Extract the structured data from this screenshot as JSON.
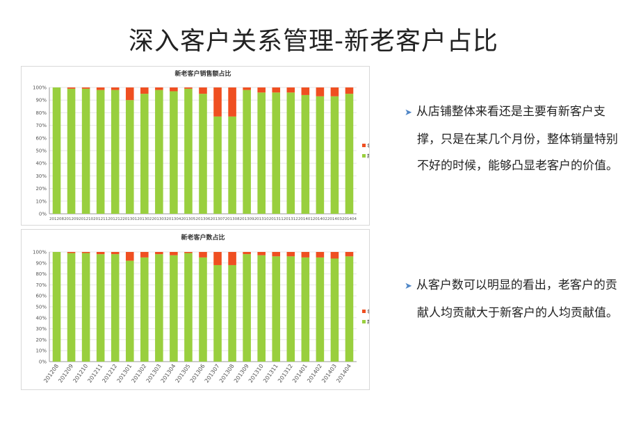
{
  "page_title": "深入客户关系管理-新老客户占比",
  "colors": {
    "old": "#ef4f21",
    "new": "#99cf3e",
    "arrow": "#4f86c6"
  },
  "bullets": [
    "从店铺整体来看还是主要有新客户支撑，只是在某几个月份，整体销量特别不好的时候，能够凸显老客户的价值。",
    "从客户数可以明显的看出，老客户的贡献人均贡献大于新客户的人均贡献值。"
  ],
  "chart_data": [
    {
      "type": "bar",
      "stacked": true,
      "title": "新老客户销售额占比",
      "categories": [
        "201208",
        "201209",
        "201210",
        "201211",
        "201212",
        "201301",
        "201302",
        "201303",
        "201304",
        "201305",
        "201306",
        "201307",
        "201308",
        "201309",
        "201310",
        "201311",
        "201312",
        "201401",
        "201402",
        "201403",
        "201404"
      ],
      "series": [
        {
          "name": "新客户",
          "values": [
            100,
            99,
            99,
            98,
            98,
            90,
            95,
            98,
            97,
            99,
            95,
            77,
            77,
            98,
            96,
            96,
            96,
            94,
            93,
            93,
            95
          ]
        },
        {
          "name": "老客户",
          "values": [
            0,
            1,
            1,
            2,
            2,
            10,
            5,
            2,
            3,
            1,
            5,
            23,
            23,
            2,
            4,
            4,
            4,
            6,
            7,
            7,
            5
          ]
        }
      ],
      "y_ticks": [
        "0%",
        "10%",
        "20%",
        "30%",
        "40%",
        "50%",
        "60%",
        "70%",
        "80%",
        "90%",
        "100%"
      ],
      "ylim": [
        0,
        100
      ],
      "legend": [
        "老客户",
        "新客户"
      ],
      "legend_position": "right"
    },
    {
      "type": "bar",
      "stacked": true,
      "title": "新老客户数占比",
      "categories": [
        "201208",
        "201209",
        "201210",
        "201211",
        "201212",
        "201301",
        "201302",
        "201303",
        "201304",
        "201305",
        "201306",
        "201307",
        "201308",
        "201309",
        "201310",
        "201311",
        "201312",
        "201401",
        "201402",
        "201403",
        "201404"
      ],
      "series": [
        {
          "name": "新客户",
          "values": [
            100,
            99,
            99,
            98,
            98,
            92,
            95,
            98,
            97,
            99,
            95,
            88,
            88,
            98,
            97,
            96,
            96,
            95,
            95,
            94,
            96
          ]
        },
        {
          "name": "老客户",
          "values": [
            0,
            1,
            1,
            2,
            2,
            8,
            5,
            2,
            3,
            1,
            5,
            12,
            12,
            2,
            3,
            4,
            4,
            5,
            5,
            6,
            4
          ]
        }
      ],
      "y_ticks": [
        "0%",
        "10%",
        "20%",
        "30%",
        "40%",
        "50%",
        "60%",
        "70%",
        "80%",
        "90%",
        "100%"
      ],
      "ylim": [
        0,
        100
      ],
      "legend": [
        "老客户",
        "新客户"
      ],
      "legend_position": "right"
    }
  ]
}
